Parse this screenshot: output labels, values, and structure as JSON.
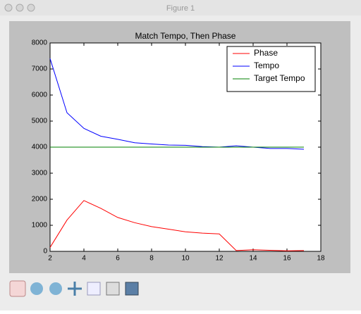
{
  "window": {
    "title": "Figure 1"
  },
  "chart_data": {
    "type": "line",
    "title": "Match Tempo, Then Phase",
    "x": [
      2,
      3,
      4,
      5,
      6,
      7,
      8,
      9,
      10,
      11,
      12,
      13,
      14,
      15,
      16,
      17
    ],
    "series": [
      {
        "name": "Phase",
        "color": "#ff0000",
        "values": [
          150,
          1200,
          1950,
          1650,
          1300,
          1100,
          950,
          850,
          750,
          700,
          670,
          30,
          60,
          40,
          20,
          30
        ]
      },
      {
        "name": "Tempo",
        "color": "#0000ff",
        "values": [
          7400,
          5320,
          4720,
          4420,
          4300,
          4170,
          4120,
          4080,
          4070,
          4020,
          4000,
          4050,
          4000,
          3950,
          3950,
          3920
        ]
      },
      {
        "name": "Target Tempo",
        "color": "#008000",
        "values": [
          4000,
          4000,
          4000,
          4000,
          4000,
          4000,
          4000,
          4000,
          4000,
          4000,
          4000,
          4000,
          4000,
          4000,
          4000,
          4000
        ]
      }
    ],
    "xlim": [
      2,
      18
    ],
    "xticks": [
      2,
      4,
      6,
      8,
      10,
      12,
      14,
      16,
      18
    ],
    "ylim": [
      0,
      8000
    ],
    "yticks": [
      0,
      1000,
      2000,
      3000,
      4000,
      5000,
      6000,
      7000,
      8000
    ],
    "legend": "upper right"
  }
}
